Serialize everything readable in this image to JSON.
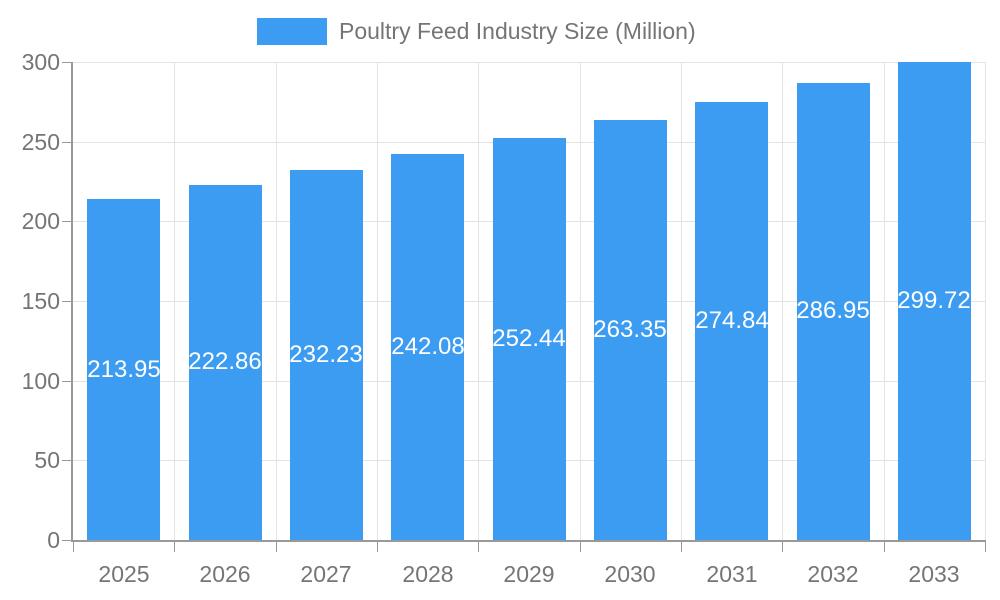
{
  "page": {
    "background": "#ffffff"
  },
  "legend": {
    "label": "Poultry Feed Industry Size (Million)",
    "swatch_color": "#3b9cf2"
  },
  "chart_data": {
    "type": "bar",
    "title": "Poultry Feed Industry Size (Million)",
    "series_name": "Poultry Feed Industry Size (Million)",
    "categories": [
      "2025",
      "2026",
      "2027",
      "2028",
      "2029",
      "2030",
      "2031",
      "2032",
      "2033"
    ],
    "values": [
      213.95,
      222.86,
      232.23,
      242.08,
      252.44,
      263.35,
      274.84,
      286.95,
      299.72
    ],
    "value_labels": [
      "213.95",
      "222.86",
      "232.23",
      "242.08",
      "252.44",
      "263.35",
      "274.84",
      "286.95",
      "299.72"
    ],
    "xlabel": "",
    "ylabel": "",
    "ylim": [
      0,
      300
    ],
    "ytick_interval": 50,
    "yticks": [
      0,
      50,
      100,
      150,
      200,
      250,
      300
    ],
    "grid": true,
    "legend_position": "top",
    "value_label_position": "inside-center",
    "colors": {
      "bar": "#3b9cf2",
      "value_label": "#ffffff",
      "axis": "#999999",
      "gridline": "#e3e3e3",
      "axis_text": "#757575",
      "legend_text": "#757575"
    }
  }
}
